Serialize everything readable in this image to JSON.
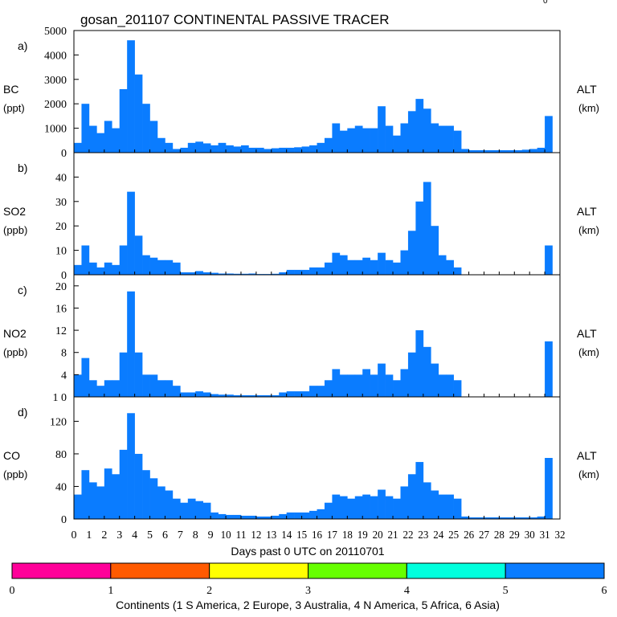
{
  "title": "gosan_201107 CONTINENTAL PASSIVE TRACER",
  "corner_mark": "0",
  "xlabel": "Days past 0 UTC on 20110701",
  "colorbar": {
    "caption": "Continents (1 S America, 2 Europe, 3 Australia, 4 N America, 5 Africa, 6 Asia)",
    "ticks": [
      "0",
      "1",
      "2",
      "3",
      "4",
      "5",
      "6"
    ],
    "colors": [
      "#ff0099",
      "#ff5a00",
      "#ffff00",
      "#66ff00",
      "#00ffdd",
      "#0a7cff"
    ]
  },
  "series_color": "#0a7cff",
  "chart_data": [
    {
      "type": "bar",
      "panel": "a)",
      "title": "BC",
      "ylabel": "(ppt)",
      "right_label": "ALT",
      "right_unit": "(km)",
      "xlim": [
        0,
        32
      ],
      "ylim": [
        0,
        5000
      ],
      "yticks": [
        "0",
        "1000",
        "2000",
        "3000",
        "4000",
        "5000"
      ],
      "x": [
        0,
        0.5,
        1,
        1.5,
        2,
        2.5,
        3,
        3.5,
        4,
        4.5,
        5,
        5.5,
        6,
        6.5,
        7,
        7.5,
        8,
        8.5,
        9,
        9.5,
        10,
        10.5,
        11,
        11.5,
        12,
        12.5,
        13,
        13.5,
        14,
        14.5,
        15,
        15.5,
        16,
        16.5,
        17,
        17.5,
        18,
        18.5,
        19,
        19.5,
        20,
        20.5,
        21,
        21.5,
        22,
        22.5,
        23,
        23.5,
        24,
        24.5,
        25,
        25.5,
        26,
        26.5,
        27,
        27.5,
        28,
        28.5,
        29,
        29.5,
        30,
        30.5,
        31,
        31.5
      ],
      "values": [
        400,
        2000,
        1100,
        800,
        1300,
        1000,
        2600,
        4600,
        3200,
        2000,
        1300,
        600,
        400,
        150,
        200,
        400,
        450,
        380,
        300,
        400,
        300,
        250,
        300,
        200,
        200,
        150,
        180,
        200,
        200,
        220,
        250,
        300,
        400,
        600,
        1200,
        900,
        1000,
        1100,
        1000,
        1000,
        1900,
        1100,
        700,
        1200,
        1700,
        2200,
        1800,
        1200,
        1100,
        1100,
        900,
        150,
        100,
        100,
        100,
        100,
        100,
        100,
        100,
        120,
        150,
        200,
        1500,
        0
      ]
    },
    {
      "type": "bar",
      "panel": "b)",
      "title": "SO2",
      "ylabel": "(ppb)",
      "right_label": "ALT",
      "right_unit": "(km)",
      "xlim": [
        0,
        32
      ],
      "ylim": [
        0,
        50
      ],
      "yticks": [
        "0",
        "10",
        "20",
        "30",
        "40"
      ],
      "x": [
        0,
        0.5,
        1,
        1.5,
        2,
        2.5,
        3,
        3.5,
        4,
        4.5,
        5,
        5.5,
        6,
        6.5,
        7,
        7.5,
        8,
        8.5,
        9,
        9.5,
        10,
        10.5,
        11,
        11.5,
        12,
        12.5,
        13,
        13.5,
        14,
        14.5,
        15,
        15.5,
        16,
        16.5,
        17,
        17.5,
        18,
        18.5,
        19,
        19.5,
        20,
        20.5,
        21,
        21.5,
        22,
        22.5,
        23,
        23.5,
        24,
        24.5,
        25,
        25.5,
        26,
        26.5,
        27,
        27.5,
        28,
        28.5,
        29,
        29.5,
        30,
        30.5,
        31,
        31.5
      ],
      "values": [
        4,
        12,
        5,
        3,
        5,
        4,
        12,
        34,
        16,
        8,
        7,
        6,
        6,
        5,
        1,
        1,
        1.5,
        1,
        0.8,
        0.5,
        0.5,
        0.4,
        0.4,
        0.5,
        0.3,
        0.3,
        0.4,
        1,
        2,
        2,
        2,
        3,
        3,
        5,
        9,
        8,
        6,
        6,
        7,
        6,
        9,
        6,
        5,
        10,
        18,
        30,
        38,
        20,
        8,
        6,
        3,
        0,
        0,
        0,
        0,
        0,
        0,
        0,
        0,
        0,
        0,
        0,
        12,
        0
      ]
    },
    {
      "type": "bar",
      "panel": "c)",
      "title": "NO2",
      "ylabel": "(ppb)",
      "right_label": "ALT",
      "right_unit": "(km)",
      "xlim": [
        0,
        32
      ],
      "ylim": [
        0,
        22
      ],
      "yticks": [
        "1 0",
        "4",
        "8",
        "12",
        "16",
        "20"
      ],
      "x": [
        0,
        0.5,
        1,
        1.5,
        2,
        2.5,
        3,
        3.5,
        4,
        4.5,
        5,
        5.5,
        6,
        6.5,
        7,
        7.5,
        8,
        8.5,
        9,
        9.5,
        10,
        10.5,
        11,
        11.5,
        12,
        12.5,
        13,
        13.5,
        14,
        14.5,
        15,
        15.5,
        16,
        16.5,
        17,
        17.5,
        18,
        18.5,
        19,
        19.5,
        20,
        20.5,
        21,
        21.5,
        22,
        22.5,
        23,
        23.5,
        24,
        24.5,
        25,
        25.5,
        26,
        26.5,
        27,
        27.5,
        28,
        28.5,
        29,
        29.5,
        30,
        30.5,
        31,
        31.5
      ],
      "values": [
        4,
        7,
        3,
        2,
        3,
        3,
        8,
        19,
        8,
        4,
        4,
        3,
        3,
        2,
        0.8,
        0.8,
        1,
        0.8,
        0.5,
        0.4,
        0.4,
        0.3,
        0.3,
        0.3,
        0.3,
        0.3,
        0.3,
        0.8,
        1,
        1,
        1,
        2,
        2,
        3,
        5,
        4,
        4,
        4,
        5,
        4,
        6,
        4,
        3,
        5,
        8,
        12,
        9,
        6,
        4,
        4,
        3,
        0,
        0,
        0,
        0,
        0,
        0,
        0,
        0,
        0,
        0,
        0,
        10,
        0
      ]
    },
    {
      "type": "bar",
      "panel": "d)",
      "title": "CO",
      "ylabel": "(ppb)",
      "right_label": "ALT",
      "right_unit": "(km)",
      "xlim": [
        0,
        32
      ],
      "ylim": [
        0,
        150
      ],
      "yticks": [
        "0",
        "40",
        "80",
        "120"
      ],
      "x": [
        0,
        0.5,
        1,
        1.5,
        2,
        2.5,
        3,
        3.5,
        4,
        4.5,
        5,
        5.5,
        6,
        6.5,
        7,
        7.5,
        8,
        8.5,
        9,
        9.5,
        10,
        10.5,
        11,
        11.5,
        12,
        12.5,
        13,
        13.5,
        14,
        14.5,
        15,
        15.5,
        16,
        16.5,
        17,
        17.5,
        18,
        18.5,
        19,
        19.5,
        20,
        20.5,
        21,
        21.5,
        22,
        22.5,
        23,
        23.5,
        24,
        24.5,
        25,
        25.5,
        26,
        26.5,
        27,
        27.5,
        28,
        28.5,
        29,
        29.5,
        30,
        30.5,
        31,
        31.5
      ],
      "values": [
        30,
        60,
        45,
        40,
        62,
        55,
        85,
        130,
        80,
        60,
        50,
        40,
        35,
        25,
        20,
        25,
        22,
        20,
        8,
        6,
        5,
        5,
        4,
        4,
        3,
        3,
        4,
        6,
        8,
        8,
        8,
        10,
        12,
        20,
        30,
        28,
        25,
        28,
        30,
        28,
        36,
        28,
        25,
        40,
        55,
        70,
        45,
        35,
        30,
        30,
        25,
        3,
        2,
        2,
        2,
        2,
        2,
        2,
        2,
        2,
        2,
        3,
        75,
        0
      ]
    }
  ],
  "x_tick_labels": [
    "0",
    "1",
    "2",
    "3",
    "4",
    "5",
    "6",
    "7",
    "8",
    "9",
    "10",
    "11",
    "12",
    "13",
    "14",
    "15",
    "16",
    "17",
    "18",
    "19",
    "20",
    "21",
    "22",
    "23",
    "24",
    "25",
    "26",
    "27",
    "28",
    "29",
    "30",
    "31",
    "32"
  ]
}
